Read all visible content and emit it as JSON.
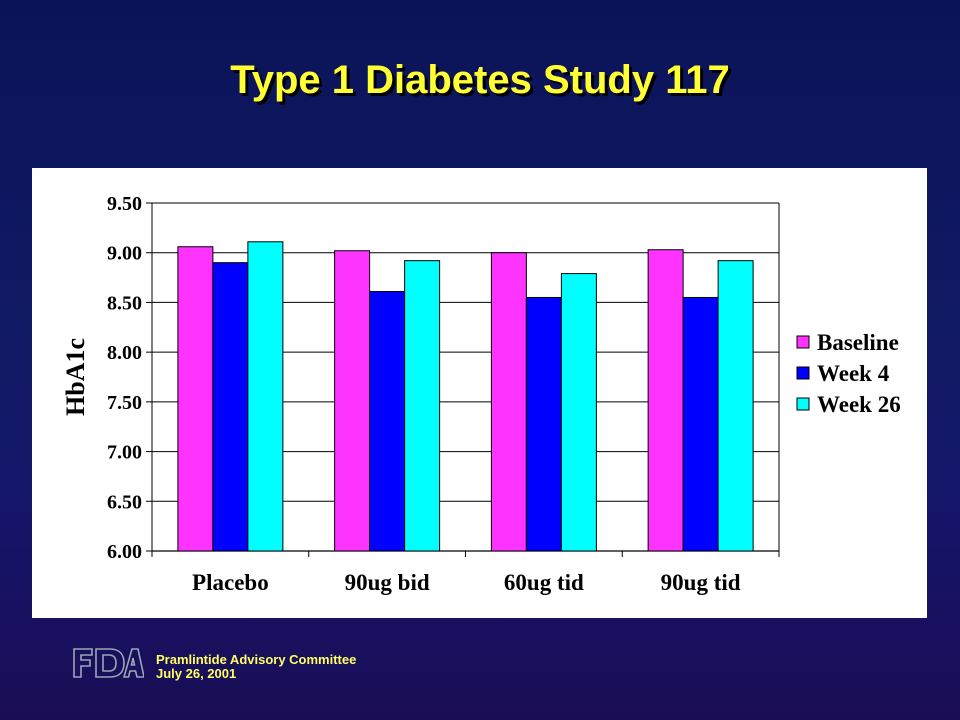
{
  "slide": {
    "title": "Type 1 Diabetes Study 117"
  },
  "footer": {
    "logo_text": "FDA",
    "line1": "Pramlintide Advisory Committee",
    "line2": "July 26, 2001"
  },
  "colors": {
    "title": "#ffff33",
    "baseline": "#ff33ff",
    "week4": "#0000ff",
    "week26": "#00ffff"
  },
  "chart_data": {
    "type": "bar",
    "title": "",
    "xlabel": "",
    "ylabel": "HbA1c",
    "ylim": [
      6.0,
      9.5
    ],
    "yticks": [
      "6.00",
      "6.50",
      "7.00",
      "7.50",
      "8.00",
      "8.50",
      "9.00",
      "9.50"
    ],
    "categories": [
      "Placebo",
      "90ug bid",
      "60ug tid",
      "90ug tid"
    ],
    "grid": "horizontal",
    "legend_position": "right",
    "series": [
      {
        "name": "Baseline",
        "color": "#ff33ff",
        "values": [
          9.06,
          9.02,
          9.0,
          9.03
        ]
      },
      {
        "name": "Week 4",
        "color": "#0000ff",
        "values": [
          8.9,
          8.61,
          8.55,
          8.55
        ]
      },
      {
        "name": "Week 26",
        "color": "#00ffff",
        "values": [
          9.11,
          8.92,
          8.79,
          8.92
        ]
      }
    ]
  }
}
